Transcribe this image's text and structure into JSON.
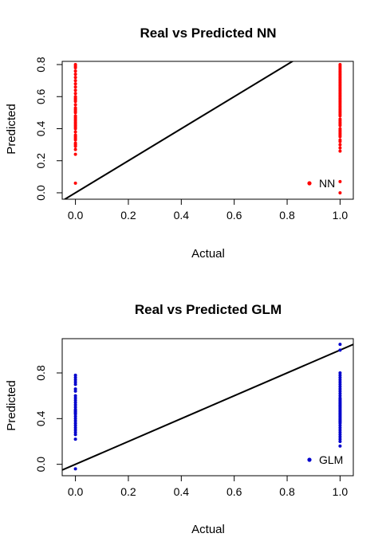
{
  "chart_data": [
    {
      "type": "scatter",
      "title": "Real vs Predicted NN",
      "xlabel": "Actual",
      "ylabel": "Predicted",
      "xlim": [
        -0.05,
        1.05
      ],
      "ylim": [
        -0.04,
        0.82
      ],
      "xticks": [
        "0.0",
        "0.2",
        "0.4",
        "0.6",
        "0.8",
        "1.0"
      ],
      "xtick_values": [
        0,
        0.2,
        0.4,
        0.6,
        0.8,
        1.0
      ],
      "yticks": [
        "0.0",
        "0.2",
        "0.4",
        "0.6",
        "0.8"
      ],
      "ytick_values": [
        0,
        0.2,
        0.4,
        0.6,
        0.8
      ],
      "point_color": "#ff0000",
      "legend": {
        "label": "NN",
        "position": "bottom-right"
      },
      "reference_line": {
        "slope": 1,
        "intercept": 0
      },
      "series": [
        {
          "x": 0,
          "values": [
            0.06,
            0.24,
            0.27,
            0.29,
            0.3,
            0.31,
            0.33,
            0.34,
            0.35,
            0.36,
            0.38,
            0.4,
            0.41,
            0.42,
            0.43,
            0.44,
            0.45,
            0.46,
            0.47,
            0.48,
            0.5,
            0.51,
            0.52,
            0.53,
            0.55,
            0.57,
            0.58,
            0.59,
            0.6,
            0.62,
            0.64,
            0.66,
            0.68,
            0.7,
            0.72,
            0.74,
            0.76,
            0.78,
            0.79,
            0.8
          ]
        },
        {
          "x": 1,
          "values": [
            0.0,
            0.07,
            0.26,
            0.28,
            0.3,
            0.32,
            0.33,
            0.35,
            0.36,
            0.37,
            0.38,
            0.39,
            0.4,
            0.42,
            0.43,
            0.44,
            0.45,
            0.46,
            0.48,
            0.49,
            0.5,
            0.51,
            0.52,
            0.53,
            0.54,
            0.55,
            0.56,
            0.57,
            0.58,
            0.59,
            0.6,
            0.61,
            0.62,
            0.63,
            0.64,
            0.65,
            0.66,
            0.67,
            0.68,
            0.69,
            0.7,
            0.71,
            0.72,
            0.73,
            0.74,
            0.75,
            0.76,
            0.77,
            0.78,
            0.79,
            0.8
          ]
        }
      ]
    },
    {
      "type": "scatter",
      "title": "Real vs Predicted GLM",
      "xlabel": "Actual",
      "ylabel": "Predicted",
      "xlim": [
        -0.05,
        1.05
      ],
      "ylim": [
        -0.1,
        1.1
      ],
      "xticks": [
        "0.0",
        "0.2",
        "0.4",
        "0.6",
        "0.8",
        "1.0"
      ],
      "xtick_values": [
        0,
        0.2,
        0.4,
        0.6,
        0.8,
        1.0
      ],
      "yticks": [
        "0.0",
        "0.4",
        "0.8"
      ],
      "ytick_values": [
        0,
        0.4,
        0.8
      ],
      "point_color": "#0000cd",
      "legend": {
        "label": "GLM",
        "position": "bottom-right"
      },
      "reference_line": {
        "slope": 1,
        "intercept": 0
      },
      "series": [
        {
          "x": 0,
          "values": [
            -0.04,
            0.22,
            0.26,
            0.28,
            0.3,
            0.32,
            0.34,
            0.36,
            0.38,
            0.4,
            0.42,
            0.44,
            0.45,
            0.46,
            0.47,
            0.48,
            0.5,
            0.52,
            0.54,
            0.56,
            0.58,
            0.6,
            0.64,
            0.66,
            0.7,
            0.72,
            0.74,
            0.76,
            0.78
          ]
        },
        {
          "x": 1,
          "values": [
            0.16,
            0.2,
            0.22,
            0.24,
            0.26,
            0.28,
            0.3,
            0.32,
            0.34,
            0.36,
            0.37,
            0.38,
            0.39,
            0.4,
            0.41,
            0.42,
            0.43,
            0.44,
            0.45,
            0.46,
            0.47,
            0.48,
            0.49,
            0.5,
            0.51,
            0.52,
            0.53,
            0.54,
            0.55,
            0.56,
            0.57,
            0.58,
            0.6,
            0.62,
            0.64,
            0.66,
            0.68,
            0.7,
            0.72,
            0.74,
            0.76,
            0.78,
            0.8,
            1.0,
            1.05
          ]
        }
      ]
    }
  ]
}
